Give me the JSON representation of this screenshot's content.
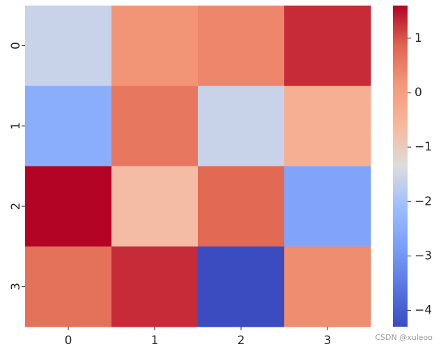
{
  "chart_data": {
    "type": "heatmap",
    "title": "",
    "xlabel": "",
    "ylabel": "",
    "x_categories": [
      "0",
      "1",
      "2",
      "3"
    ],
    "y_categories": [
      "0",
      "1",
      "2",
      "3"
    ],
    "values": [
      [
        -1.6,
        0.2,
        0.4,
        1.3
      ],
      [
        -2.5,
        0.6,
        -1.6,
        -0.4
      ],
      [
        1.6,
        -0.7,
        0.8,
        -2.7
      ],
      [
        0.7,
        1.3,
        -4.3,
        0.3
      ]
    ],
    "colorbar": {
      "colormap": "coolwarm",
      "range": [
        -4.3,
        1.6
      ],
      "ticks": [
        {
          "value": 1,
          "label": "1"
        },
        {
          "value": 0,
          "label": "0"
        },
        {
          "value": -1,
          "label": "−1"
        },
        {
          "value": -2,
          "label": "−2"
        },
        {
          "value": -3,
          "label": "−3"
        },
        {
          "value": -4,
          "label": "−4"
        }
      ]
    }
  },
  "watermark": "CSDN @xuleoo"
}
